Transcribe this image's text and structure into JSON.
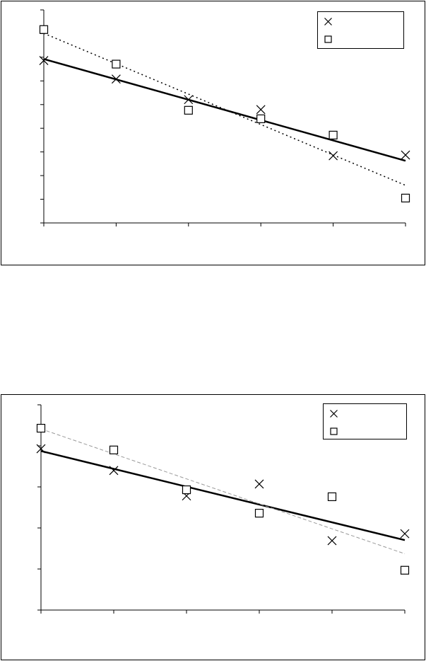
{
  "chart_data": [
    {
      "type": "scatter",
      "trendline": "linear",
      "x": [
        0,
        1,
        2,
        3,
        4,
        5
      ],
      "xlim": [
        0,
        5
      ],
      "xticks": [
        0,
        1,
        2,
        3,
        4,
        5
      ],
      "ylim": [
        0,
        9
      ],
      "yticks": [
        0,
        1,
        2,
        3,
        4,
        5,
        6,
        7,
        8,
        9
      ],
      "legend": "top-right",
      "series": [
        {
          "marker": "cross",
          "color": "#000000",
          "values": [
            6.86,
            6.08,
            5.21,
            4.79,
            2.84,
            2.87
          ]
        },
        {
          "marker": "square",
          "color": "#000000",
          "values": [
            8.17,
            6.71,
            4.76,
            4.4,
            3.71,
            1.05
          ]
        }
      ]
    },
    {
      "type": "scatter",
      "trendline": "linear",
      "x": [
        0,
        1,
        2,
        3,
        4,
        5
      ],
      "xlim": [
        0,
        5
      ],
      "xticks": [
        0,
        1,
        2,
        3,
        4,
        5
      ],
      "ylim": [
        0,
        5
      ],
      "yticks": [
        0,
        1,
        2,
        3,
        4,
        5
      ],
      "legend": "top-right",
      "series": [
        {
          "marker": "cross",
          "color": "#000000",
          "values": [
            3.93,
            3.4,
            2.78,
            3.07,
            1.69,
            1.86
          ]
        },
        {
          "marker": "square",
          "color": "#000000",
          "values": [
            4.43,
            3.9,
            2.93,
            2.36,
            2.76,
            0.97
          ]
        }
      ]
    }
  ]
}
